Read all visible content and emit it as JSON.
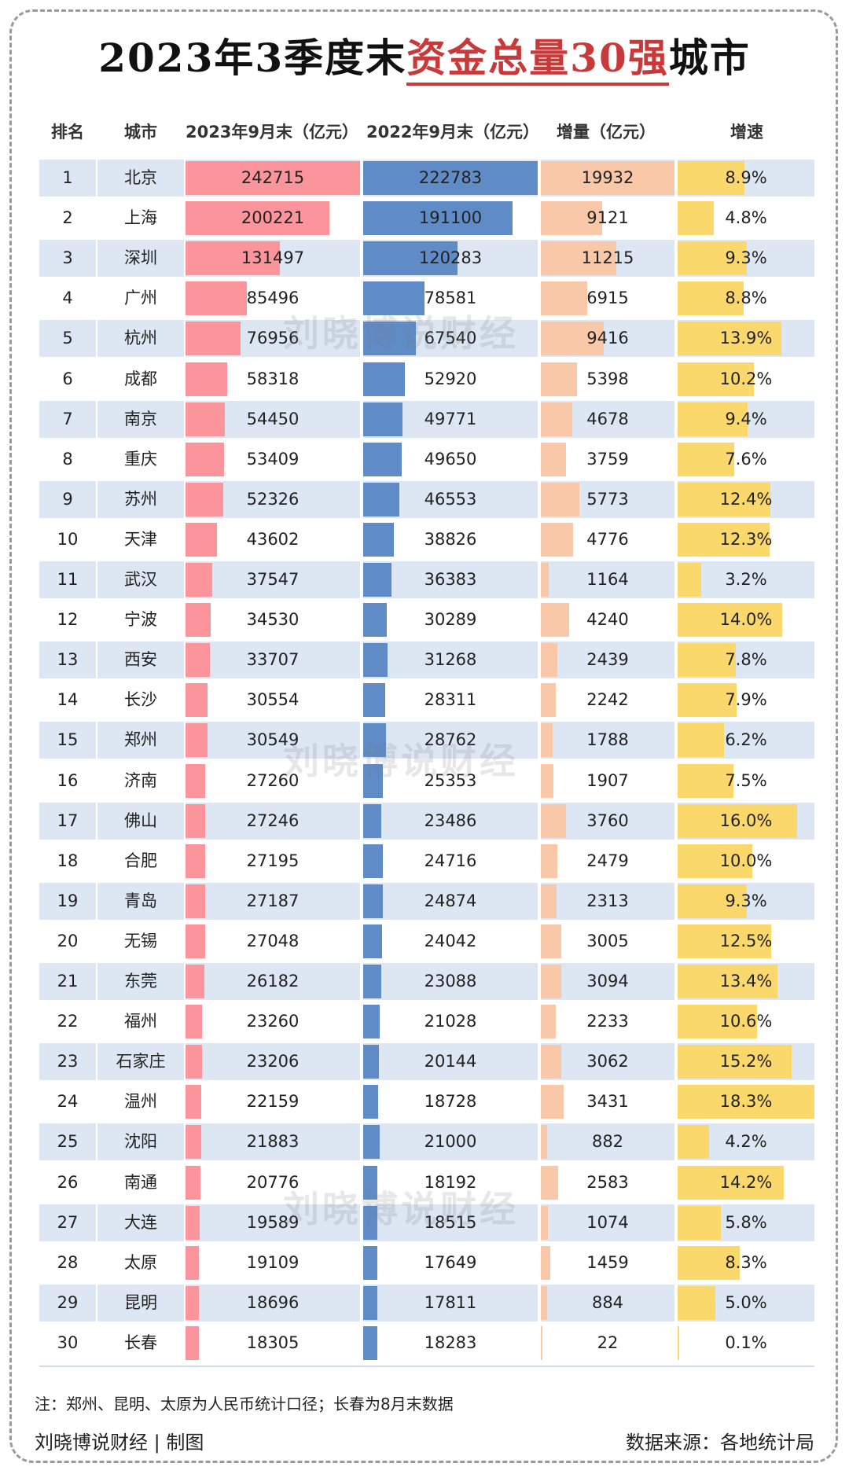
{
  "title": {
    "pre": "2023年3季度末",
    "highlight": "资金总量30强",
    "post": "城市"
  },
  "headers": [
    "排名",
    "城市",
    "2023年9月末（亿元）",
    "2022年9月末（亿元）",
    "增量（亿元）",
    "增速"
  ],
  "watermark": "刘晓博说财经",
  "note": "注：郑州、昆明、太原为人民币统计口径；长春为8月末数据",
  "footer": {
    "left": "刘晓博说财经 | 制图",
    "right": "数据来源：各地统计局"
  },
  "colors": {
    "bar_2023": "#fb959b",
    "bar_2022": "#5f8bc7",
    "bar_increase": "#f8c8a9",
    "bar_growth": "#fbd86b",
    "row_alt": "#dce7f3",
    "title_highlight": "#c83a3a"
  },
  "chart_data": {
    "type": "table",
    "columns": [
      "排名",
      "城市",
      "2023年9月末（亿元）",
      "2022年9月末（亿元）",
      "增量（亿元）",
      "增速"
    ],
    "rows": [
      {
        "rank": "1",
        "city": "北京",
        "v2023": 242715,
        "v2022": 222783,
        "inc": 19932,
        "rate": "8.9%"
      },
      {
        "rank": "2",
        "city": "上海",
        "v2023": 200221,
        "v2022": 191100,
        "inc": 9121,
        "rate": "4.8%"
      },
      {
        "rank": "3",
        "city": "深圳",
        "v2023": 131497,
        "v2022": 120283,
        "inc": 11215,
        "rate": "9.3%"
      },
      {
        "rank": "4",
        "city": "广州",
        "v2023": 85496,
        "v2022": 78581,
        "inc": 6915,
        "rate": "8.8%"
      },
      {
        "rank": "5",
        "city": "杭州",
        "v2023": 76956,
        "v2022": 67540,
        "inc": 9416,
        "rate": "13.9%"
      },
      {
        "rank": "6",
        "city": "成都",
        "v2023": 58318,
        "v2022": 52920,
        "inc": 5398,
        "rate": "10.2%"
      },
      {
        "rank": "7",
        "city": "南京",
        "v2023": 54450,
        "v2022": 49771,
        "inc": 4678,
        "rate": "9.4%"
      },
      {
        "rank": "8",
        "city": "重庆",
        "v2023": 53409,
        "v2022": 49650,
        "inc": 3759,
        "rate": "7.6%"
      },
      {
        "rank": "9",
        "city": "苏州",
        "v2023": 52326,
        "v2022": 46553,
        "inc": 5773,
        "rate": "12.4%"
      },
      {
        "rank": "10",
        "city": "天津",
        "v2023": 43602,
        "v2022": 38826,
        "inc": 4776,
        "rate": "12.3%"
      },
      {
        "rank": "11",
        "city": "武汉",
        "v2023": 37547,
        "v2022": 36383,
        "inc": 1164,
        "rate": "3.2%"
      },
      {
        "rank": "12",
        "city": "宁波",
        "v2023": 34530,
        "v2022": 30289,
        "inc": 4240,
        "rate": "14.0%"
      },
      {
        "rank": "13",
        "city": "西安",
        "v2023": 33707,
        "v2022": 31268,
        "inc": 2439,
        "rate": "7.8%"
      },
      {
        "rank": "14",
        "city": "长沙",
        "v2023": 30554,
        "v2022": 28311,
        "inc": 2242,
        "rate": "7.9%"
      },
      {
        "rank": "15",
        "city": "郑州",
        "v2023": 30549,
        "v2022": 28762,
        "inc": 1788,
        "rate": "6.2%"
      },
      {
        "rank": "16",
        "city": "济南",
        "v2023": 27260,
        "v2022": 25353,
        "inc": 1907,
        "rate": "7.5%"
      },
      {
        "rank": "17",
        "city": "佛山",
        "v2023": 27246,
        "v2022": 23486,
        "inc": 3760,
        "rate": "16.0%"
      },
      {
        "rank": "18",
        "city": "合肥",
        "v2023": 27195,
        "v2022": 24716,
        "inc": 2479,
        "rate": "10.0%"
      },
      {
        "rank": "19",
        "city": "青岛",
        "v2023": 27187,
        "v2022": 24874,
        "inc": 2313,
        "rate": "9.3%"
      },
      {
        "rank": "20",
        "city": "无锡",
        "v2023": 27048,
        "v2022": 24042,
        "inc": 3005,
        "rate": "12.5%"
      },
      {
        "rank": "21",
        "city": "东莞",
        "v2023": 26182,
        "v2022": 23088,
        "inc": 3094,
        "rate": "13.4%"
      },
      {
        "rank": "22",
        "city": "福州",
        "v2023": 23260,
        "v2022": 21028,
        "inc": 2233,
        "rate": "10.6%"
      },
      {
        "rank": "23",
        "city": "石家庄",
        "v2023": 23206,
        "v2022": 20144,
        "inc": 3062,
        "rate": "15.2%"
      },
      {
        "rank": "24",
        "city": "温州",
        "v2023": 22159,
        "v2022": 18728,
        "inc": 3431,
        "rate": "18.3%"
      },
      {
        "rank": "25",
        "city": "沈阳",
        "v2023": 21883,
        "v2022": 21000,
        "inc": 882,
        "rate": "4.2%"
      },
      {
        "rank": "26",
        "city": "南通",
        "v2023": 20776,
        "v2022": 18192,
        "inc": 2583,
        "rate": "14.2%"
      },
      {
        "rank": "27",
        "city": "大连",
        "v2023": 19589,
        "v2022": 18515,
        "inc": 1074,
        "rate": "5.8%"
      },
      {
        "rank": "28",
        "city": "太原",
        "v2023": 19109,
        "v2022": 17649,
        "inc": 1459,
        "rate": "8.3%"
      },
      {
        "rank": "29",
        "city": "昆明",
        "v2023": 18696,
        "v2022": 17811,
        "inc": 884,
        "rate": "5.0%"
      },
      {
        "rank": "30",
        "city": "长春",
        "v2023": 18305,
        "v2022": 18283,
        "inc": 22,
        "rate": "0.1%"
      }
    ]
  }
}
